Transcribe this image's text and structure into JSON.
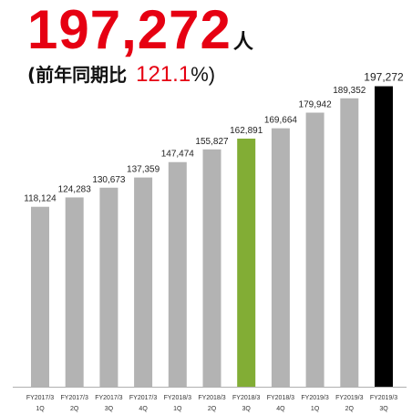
{
  "headline": {
    "value": "197,272",
    "unit": "人",
    "yoy_prefix": "(前年同期比",
    "yoy_value": "121.1",
    "yoy_suffix": "%)"
  },
  "colors": {
    "accent": "#e60012",
    "bar_default": "#b3b3b3",
    "bar_highlight": "#82ad35",
    "bar_latest": "#000000"
  },
  "chart_data": {
    "type": "bar",
    "categories": [
      [
        "FY2017/3",
        "1Q"
      ],
      [
        "FY2017/3",
        "2Q"
      ],
      [
        "FY2017/3",
        "3Q"
      ],
      [
        "FY2017/3",
        "4Q"
      ],
      [
        "FY2018/3",
        "1Q"
      ],
      [
        "FY2018/3",
        "2Q"
      ],
      [
        "FY2018/3",
        "3Q"
      ],
      [
        "FY2018/3",
        "4Q"
      ],
      [
        "FY2019/3",
        "1Q"
      ],
      [
        "FY2019/3",
        "2Q"
      ],
      [
        "FY2019/3",
        "3Q"
      ]
    ],
    "values": [
      118124,
      124283,
      130673,
      137359,
      147474,
      155827,
      162891,
      169664,
      179942,
      189352,
      197272
    ],
    "value_labels": [
      "118,124",
      "124,283",
      "130,673",
      "137,359",
      "147,474",
      "155,827",
      "162,891",
      "169,664",
      "179,942",
      "189,352",
      "197,272"
    ],
    "bar_colors": [
      "bar_default",
      "bar_default",
      "bar_default",
      "bar_default",
      "bar_default",
      "bar_default",
      "bar_highlight",
      "bar_default",
      "bar_default",
      "bar_default",
      "bar_latest"
    ],
    "ylim": [
      0,
      200000
    ],
    "grid": false,
    "legend": "none"
  }
}
